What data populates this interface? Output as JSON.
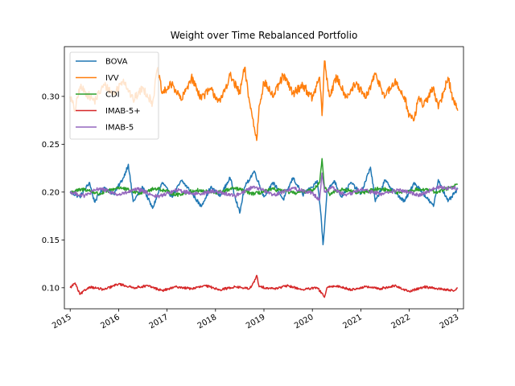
{
  "chart_data": {
    "type": "line",
    "title": "Weight over Time Rebalanced Portfolio",
    "xlabel": "",
    "ylabel": "",
    "x_range": [
      "2014-11-20",
      "2023-02-10"
    ],
    "xlim": [
      2014.88,
      2023.12
    ],
    "ylim": [
      0.078,
      0.352
    ],
    "x_ticks": [
      {
        "label": "2015",
        "value": 2015
      },
      {
        "label": "2016",
        "value": 2016
      },
      {
        "label": "2017",
        "value": 2017
      },
      {
        "label": "2018",
        "value": 2018
      },
      {
        "label": "2019",
        "value": 2019
      },
      {
        "label": "2020",
        "value": 2020
      },
      {
        "label": "2021",
        "value": 2021
      },
      {
        "label": "2022",
        "value": 2022
      },
      {
        "label": "2023",
        "value": 2023
      }
    ],
    "y_ticks": [
      {
        "label": "0.10",
        "value": 0.1
      },
      {
        "label": "0.15",
        "value": 0.15
      },
      {
        "label": "0.20",
        "value": 0.2
      },
      {
        "label": "0.25",
        "value": 0.25
      },
      {
        "label": "0.30",
        "value": 0.3
      }
    ],
    "grid": false,
    "legend_position": "top-left",
    "series": [
      {
        "name": "BOVA",
        "color": "#1f77b4",
        "x": [
          2015.0,
          2015.2,
          2015.4,
          2015.5,
          2015.7,
          2015.9,
          2016.1,
          2016.2,
          2016.3,
          2016.5,
          2016.7,
          2016.9,
          2017.1,
          2017.3,
          2017.5,
          2017.7,
          2017.9,
          2018.1,
          2018.3,
          2018.5,
          2018.6,
          2018.8,
          2019.0,
          2019.2,
          2019.4,
          2019.6,
          2019.8,
          2020.0,
          2020.1,
          2020.18,
          2020.22,
          2020.26,
          2020.3,
          2020.45,
          2020.6,
          2020.8,
          2021.0,
          2021.2,
          2021.3,
          2021.5,
          2021.7,
          2021.9,
          2022.1,
          2022.3,
          2022.5,
          2022.6,
          2022.8,
          2023.0
        ],
        "y": [
          0.2,
          0.195,
          0.21,
          0.19,
          0.205,
          0.198,
          0.215,
          0.229,
          0.19,
          0.205,
          0.183,
          0.21,
          0.195,
          0.212,
          0.2,
          0.185,
          0.205,
          0.196,
          0.215,
          0.178,
          0.205,
          0.222,
          0.195,
          0.21,
          0.192,
          0.215,
          0.197,
          0.205,
          0.212,
          0.175,
          0.145,
          0.17,
          0.2,
          0.212,
          0.195,
          0.21,
          0.198,
          0.226,
          0.19,
          0.212,
          0.2,
          0.19,
          0.21,
          0.198,
          0.185,
          0.213,
          0.19,
          0.203
        ]
      },
      {
        "name": "IVV",
        "color": "#ff7f0e",
        "x": [
          2015.0,
          2015.1,
          2015.2,
          2015.3,
          2015.5,
          2015.7,
          2015.9,
          2016.1,
          2016.3,
          2016.5,
          2016.7,
          2016.8,
          2016.9,
          2017.1,
          2017.3,
          2017.5,
          2017.7,
          2017.9,
          2018.1,
          2018.3,
          2018.5,
          2018.6,
          2018.7,
          2018.8,
          2018.85,
          2018.9,
          2019.0,
          2019.2,
          2019.4,
          2019.6,
          2019.8,
          2020.0,
          2020.15,
          2020.2,
          2020.25,
          2020.35,
          2020.5,
          2020.7,
          2020.9,
          2021.1,
          2021.3,
          2021.5,
          2021.7,
          2021.9,
          2022.0,
          2022.1,
          2022.2,
          2022.3,
          2022.5,
          2022.6,
          2022.8,
          2022.9,
          2023.0
        ],
        "y": [
          0.3,
          0.285,
          0.31,
          0.305,
          0.295,
          0.312,
          0.302,
          0.318,
          0.296,
          0.309,
          0.293,
          0.329,
          0.303,
          0.313,
          0.296,
          0.32,
          0.299,
          0.307,
          0.294,
          0.322,
          0.303,
          0.33,
          0.295,
          0.268,
          0.254,
          0.29,
          0.315,
          0.3,
          0.322,
          0.303,
          0.312,
          0.298,
          0.32,
          0.28,
          0.337,
          0.3,
          0.32,
          0.3,
          0.313,
          0.298,
          0.323,
          0.3,
          0.315,
          0.3,
          0.28,
          0.275,
          0.3,
          0.29,
          0.31,
          0.287,
          0.32,
          0.298,
          0.285
        ]
      },
      {
        "name": "CDI",
        "color": "#2ca02c",
        "x": [
          2015.0,
          2015.3,
          2015.6,
          2016.0,
          2016.4,
          2016.8,
          2017.2,
          2017.6,
          2018.0,
          2018.4,
          2018.8,
          2019.2,
          2019.6,
          2020.0,
          2020.15,
          2020.2,
          2020.25,
          2020.35,
          2020.6,
          2021.0,
          2021.4,
          2021.8,
          2022.2,
          2022.6,
          2023.0
        ],
        "y": [
          0.2,
          0.203,
          0.198,
          0.205,
          0.199,
          0.204,
          0.197,
          0.202,
          0.199,
          0.204,
          0.198,
          0.203,
          0.199,
          0.202,
          0.21,
          0.235,
          0.205,
          0.198,
          0.203,
          0.199,
          0.204,
          0.199,
          0.203,
          0.2,
          0.208
        ]
      },
      {
        "name": "IMAB-5+",
        "color": "#d62728",
        "x": [
          2015.0,
          2015.1,
          2015.2,
          2015.4,
          2015.7,
          2016.0,
          2016.3,
          2016.6,
          2016.9,
          2017.2,
          2017.5,
          2017.8,
          2018.1,
          2018.4,
          2018.7,
          2018.8,
          2018.85,
          2018.9,
          2019.2,
          2019.5,
          2019.8,
          2020.1,
          2020.2,
          2020.25,
          2020.3,
          2020.5,
          2020.8,
          2021.1,
          2021.4,
          2021.7,
          2022.0,
          2022.3,
          2022.6,
          2022.9,
          2023.0
        ],
        "y": [
          0.1,
          0.105,
          0.093,
          0.101,
          0.098,
          0.104,
          0.1,
          0.102,
          0.097,
          0.101,
          0.099,
          0.102,
          0.098,
          0.101,
          0.099,
          0.106,
          0.113,
          0.101,
          0.099,
          0.102,
          0.098,
          0.1,
          0.094,
          0.09,
          0.1,
          0.102,
          0.098,
          0.101,
          0.099,
          0.102,
          0.096,
          0.101,
          0.099,
          0.097,
          0.1
        ]
      },
      {
        "name": "IMAB-5",
        "color": "#9467bd",
        "x": [
          2015.0,
          2015.3,
          2015.6,
          2016.0,
          2016.4,
          2016.8,
          2017.2,
          2017.6,
          2018.0,
          2018.4,
          2018.8,
          2019.2,
          2019.6,
          2020.0,
          2020.15,
          2020.2,
          2020.25,
          2020.4,
          2020.7,
          2021.0,
          2021.4,
          2021.8,
          2022.2,
          2022.6,
          2023.0
        ],
        "y": [
          0.2,
          0.196,
          0.204,
          0.197,
          0.203,
          0.195,
          0.202,
          0.198,
          0.201,
          0.196,
          0.206,
          0.197,
          0.204,
          0.199,
          0.192,
          0.22,
          0.2,
          0.205,
          0.196,
          0.203,
          0.198,
          0.202,
          0.197,
          0.205,
          0.204
        ]
      }
    ]
  }
}
